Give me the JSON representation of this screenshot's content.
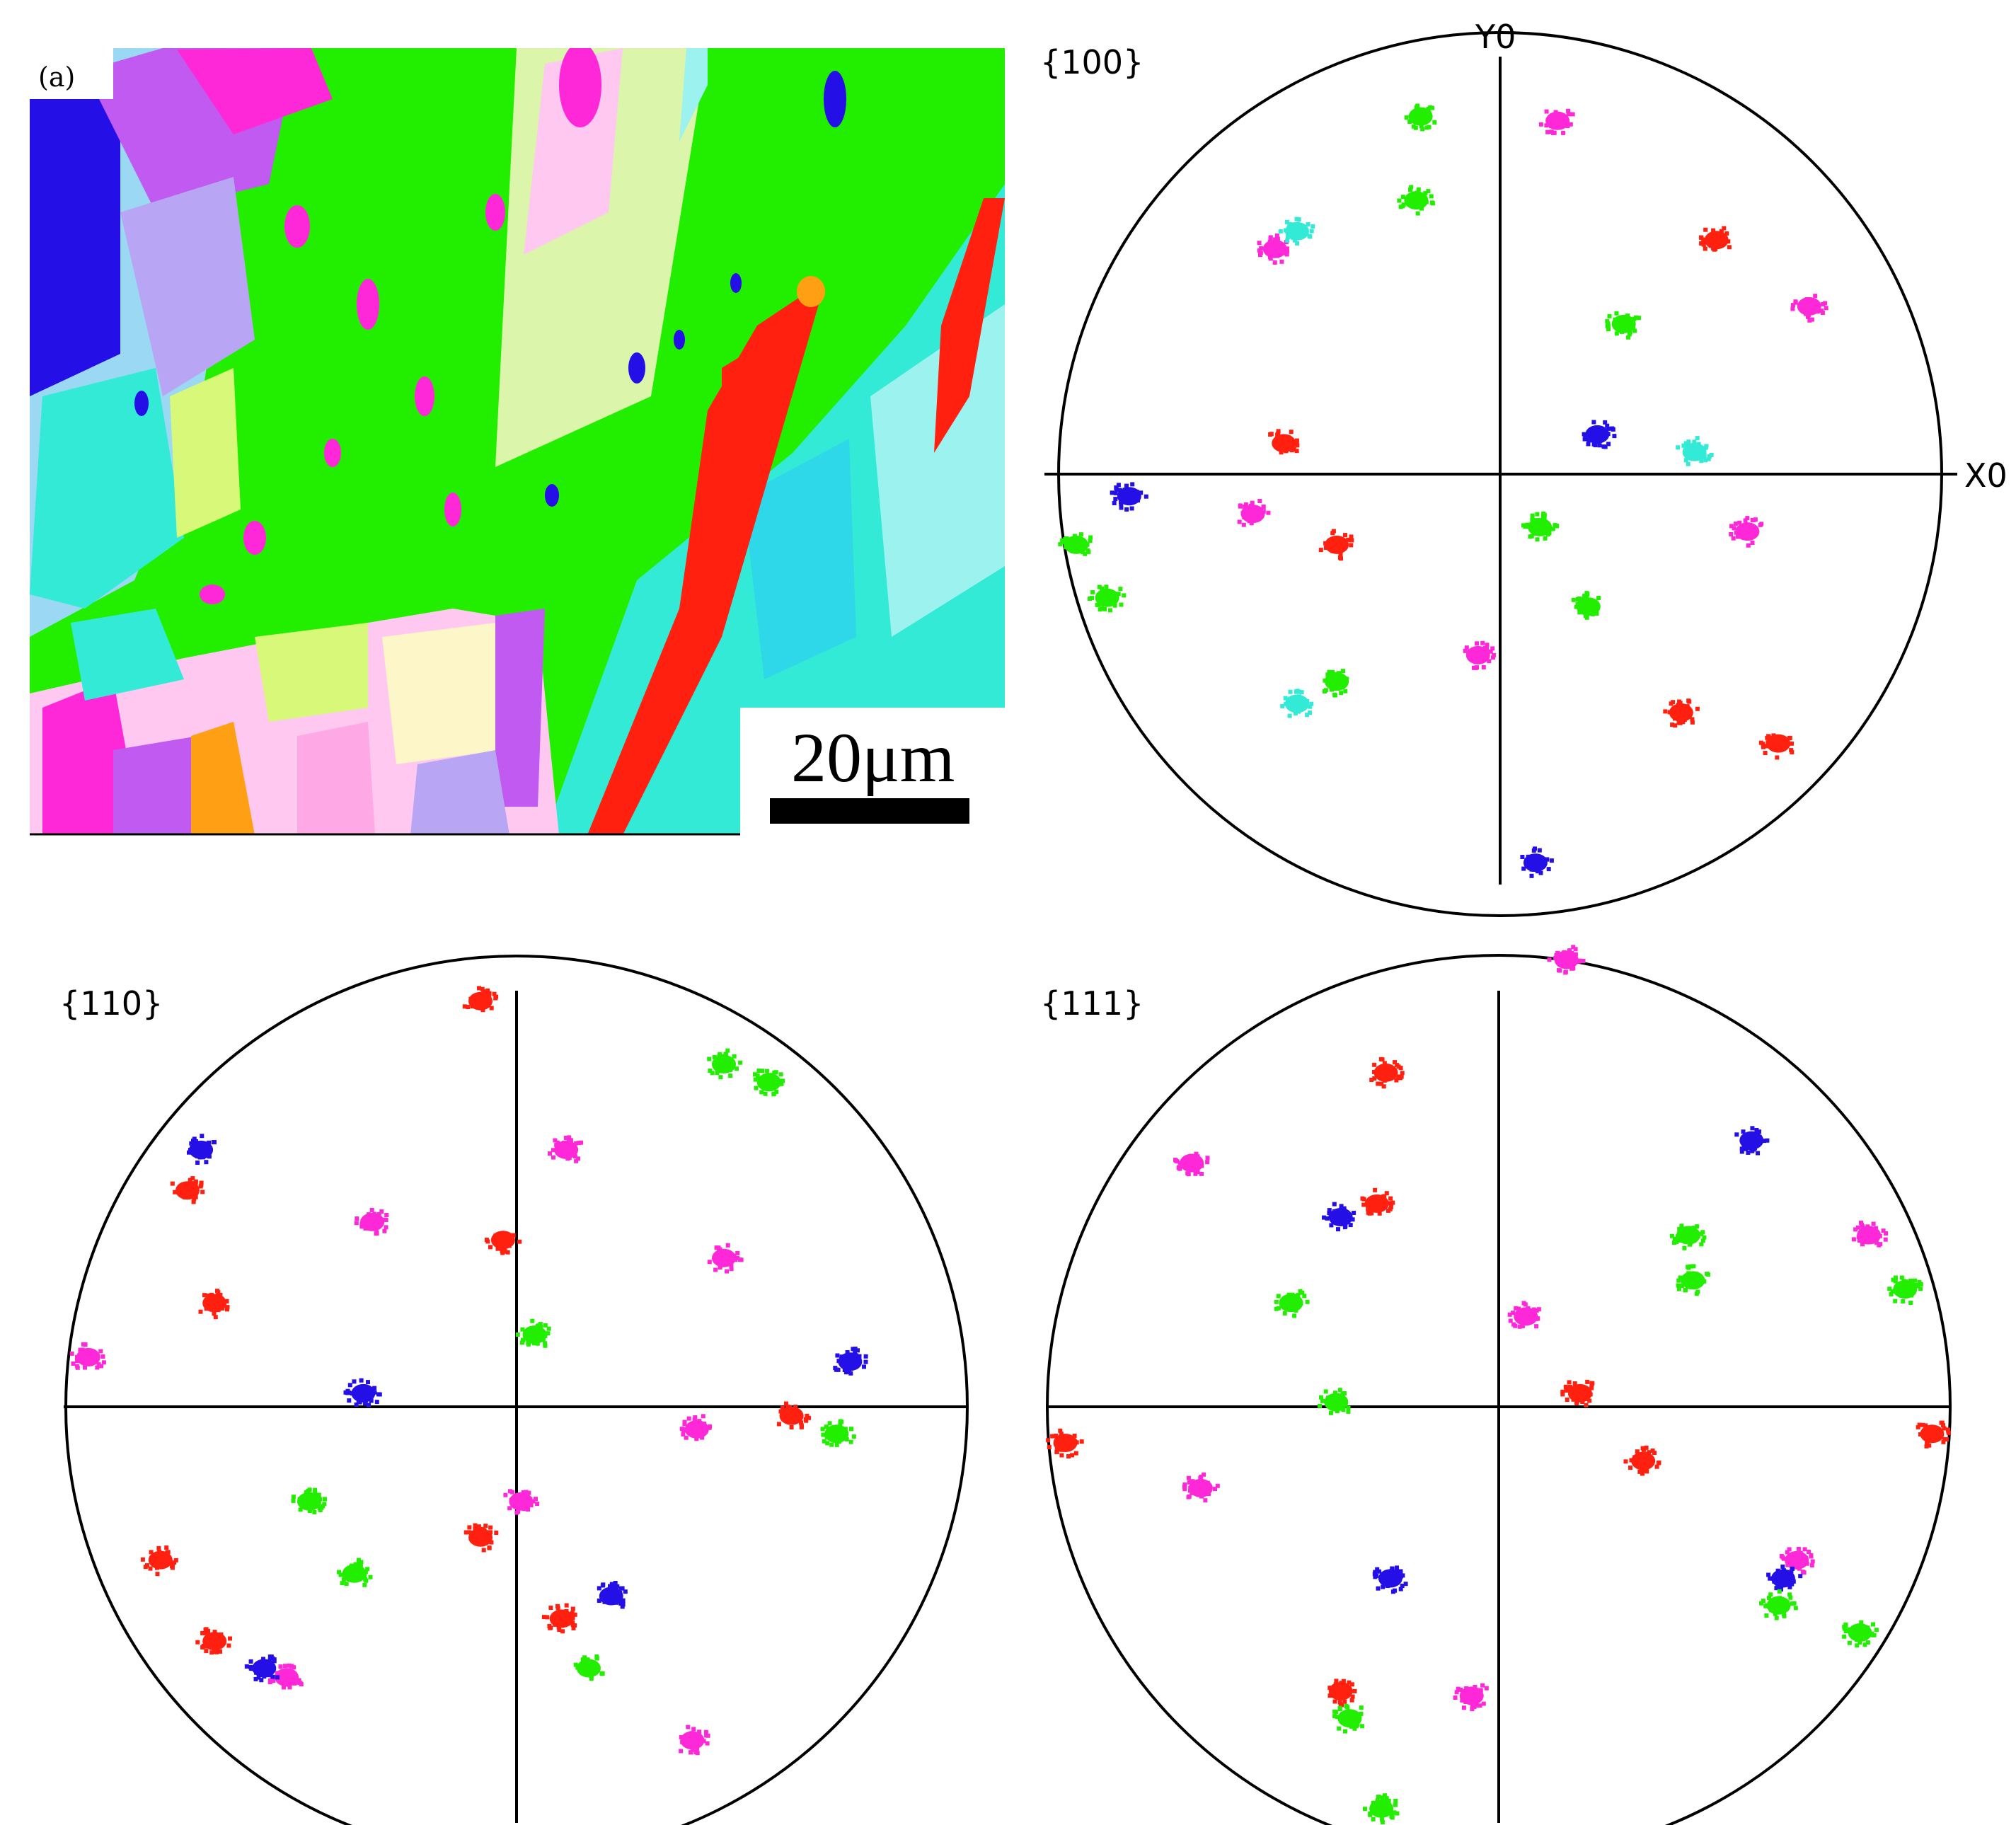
{
  "ebsd_map": {
    "label": "(a)",
    "scale_bar_text": "20μm",
    "colors": {
      "green": "#22ee00",
      "red": "#ff2010",
      "blue": "#2410e6",
      "magenta": "#ff28d8",
      "cyan": "#33ead6",
      "light_cyan": "#9cf2ee",
      "light_pink": "#ffc8f0",
      "purple": "#c05af0",
      "orange": "#ffa014",
      "yellow_green": "#d8f87a",
      "light_yellow": "#fcf6c8",
      "lavender": "#b8a6f4"
    }
  },
  "pole_figures": [
    {
      "title": "{100}",
      "y_label": "Y0",
      "x_label": "X0",
      "spots": [
        {
          "c": "green",
          "u": -0.18,
          "v": 0.81
        },
        {
          "c": "magenta",
          "u": 0.13,
          "v": 0.8
        },
        {
          "c": "green",
          "u": -0.19,
          "v": 0.62
        },
        {
          "c": "magenta",
          "u": -0.51,
          "v": 0.51
        },
        {
          "c": "red",
          "u": 0.49,
          "v": 0.53
        },
        {
          "c": "magenta",
          "u": 0.7,
          "v": 0.38
        },
        {
          "c": "red",
          "u": -0.49,
          "v": 0.07
        },
        {
          "c": "blue",
          "u": 0.22,
          "v": 0.09
        },
        {
          "c": "blue",
          "u": -0.84,
          "v": -0.05
        },
        {
          "c": "magenta",
          "u": -0.56,
          "v": -0.09
        },
        {
          "c": "red",
          "u": -0.37,
          "v": -0.16
        },
        {
          "c": "green",
          "u": 0.09,
          "v": -0.12
        },
        {
          "c": "magenta",
          "u": 0.56,
          "v": -0.13
        },
        {
          "c": "green",
          "u": -0.96,
          "v": -0.16
        },
        {
          "c": "green",
          "u": -0.89,
          "v": -0.28
        },
        {
          "c": "green",
          "u": 0.2,
          "v": -0.3
        },
        {
          "c": "magenta",
          "u": -0.05,
          "v": -0.41
        },
        {
          "c": "red",
          "u": 0.41,
          "v": -0.54
        },
        {
          "c": "red",
          "u": 0.63,
          "v": -0.61
        },
        {
          "c": "blue",
          "u": 0.08,
          "v": -0.88
        },
        {
          "c": "cyan",
          "u": -0.46,
          "v": 0.55
        },
        {
          "c": "cyan",
          "u": 0.44,
          "v": 0.05
        },
        {
          "c": "green",
          "u": -0.37,
          "v": -0.47
        },
        {
          "c": "green",
          "u": 0.28,
          "v": 0.34
        },
        {
          "c": "cyan",
          "u": -0.46,
          "v": -0.52
        }
      ]
    },
    {
      "title": "{110}",
      "spots": [
        {
          "c": "red",
          "u": -0.08,
          "v": 0.9
        },
        {
          "c": "green",
          "u": 0.46,
          "v": 0.76
        },
        {
          "c": "green",
          "u": 0.56,
          "v": 0.72
        },
        {
          "c": "blue",
          "u": -0.7,
          "v": 0.57
        },
        {
          "c": "magenta",
          "u": 0.11,
          "v": 0.57
        },
        {
          "c": "red",
          "u": -0.73,
          "v": 0.48
        },
        {
          "c": "magenta",
          "u": -0.32,
          "v": 0.41
        },
        {
          "c": "red",
          "u": -0.03,
          "v": 0.37
        },
        {
          "c": "magenta",
          "u": 0.46,
          "v": 0.33
        },
        {
          "c": "red",
          "u": -0.67,
          "v": 0.23
        },
        {
          "c": "green",
          "u": 0.04,
          "v": 0.16
        },
        {
          "c": "magenta",
          "u": -0.95,
          "v": 0.11
        },
        {
          "c": "blue",
          "u": 0.74,
          "v": 0.1
        },
        {
          "c": "blue",
          "u": -0.34,
          "v": 0.03
        },
        {
          "c": "red",
          "u": 0.61,
          "v": -0.02
        },
        {
          "c": "green",
          "u": 0.71,
          "v": -0.06
        },
        {
          "c": "magenta",
          "u": 0.4,
          "v": -0.05
        },
        {
          "c": "green",
          "u": -0.46,
          "v": -0.21
        },
        {
          "c": "magenta",
          "u": 0.01,
          "v": -0.21
        },
        {
          "c": "red",
          "u": -0.08,
          "v": -0.29
        },
        {
          "c": "red",
          "u": -0.79,
          "v": -0.34
        },
        {
          "c": "green",
          "u": -0.36,
          "v": -0.37
        },
        {
          "c": "blue",
          "u": 0.21,
          "v": -0.42
        },
        {
          "c": "red",
          "u": 0.1,
          "v": -0.47
        },
        {
          "c": "red",
          "u": -0.67,
          "v": -0.52
        },
        {
          "c": "green",
          "u": 0.16,
          "v": -0.58
        },
        {
          "c": "magenta",
          "u": -0.51,
          "v": -0.6
        },
        {
          "c": "blue",
          "u": -0.56,
          "v": -0.58
        },
        {
          "c": "magenta",
          "u": 0.39,
          "v": -0.74
        },
        {
          "c": "red",
          "u": -0.07,
          "v": -0.97
        }
      ]
    },
    {
      "title": "{111}",
      "spots": [
        {
          "c": "magenta",
          "u": 0.15,
          "v": 0.99
        },
        {
          "c": "red",
          "u": -0.25,
          "v": 0.74
        },
        {
          "c": "blue",
          "u": 0.56,
          "v": 0.59
        },
        {
          "c": "magenta",
          "u": -0.68,
          "v": 0.54
        },
        {
          "c": "blue",
          "u": -0.35,
          "v": 0.42
        },
        {
          "c": "red",
          "u": -0.27,
          "v": 0.45
        },
        {
          "c": "green",
          "u": 0.42,
          "v": 0.38
        },
        {
          "c": "magenta",
          "u": 0.82,
          "v": 0.38
        },
        {
          "c": "green",
          "u": 0.43,
          "v": 0.28
        },
        {
          "c": "green",
          "u": -0.46,
          "v": 0.23
        },
        {
          "c": "green",
          "u": 0.9,
          "v": 0.26
        },
        {
          "c": "magenta",
          "u": 0.06,
          "v": 0.2
        },
        {
          "c": "green",
          "u": -0.36,
          "v": 0.01
        },
        {
          "c": "red",
          "u": 0.18,
          "v": 0.03
        },
        {
          "c": "red",
          "u": 0.96,
          "v": -0.06
        },
        {
          "c": "red",
          "u": -0.96,
          "v": -0.08
        },
        {
          "c": "magenta",
          "u": -0.66,
          "v": -0.18
        },
        {
          "c": "red",
          "u": 0.32,
          "v": -0.12
        },
        {
          "c": "magenta",
          "u": 0.66,
          "v": -0.34
        },
        {
          "c": "blue",
          "u": -0.24,
          "v": -0.38
        },
        {
          "c": "blue",
          "u": 0.63,
          "v": -0.38
        },
        {
          "c": "green",
          "u": 0.62,
          "v": -0.44
        },
        {
          "c": "green",
          "u": 0.8,
          "v": -0.5
        },
        {
          "c": "red",
          "u": -0.35,
          "v": -0.63
        },
        {
          "c": "magenta",
          "u": -0.06,
          "v": -0.64
        },
        {
          "c": "green",
          "u": -0.33,
          "v": -0.69
        },
        {
          "c": "green",
          "u": -0.26,
          "v": -0.89
        }
      ]
    }
  ]
}
